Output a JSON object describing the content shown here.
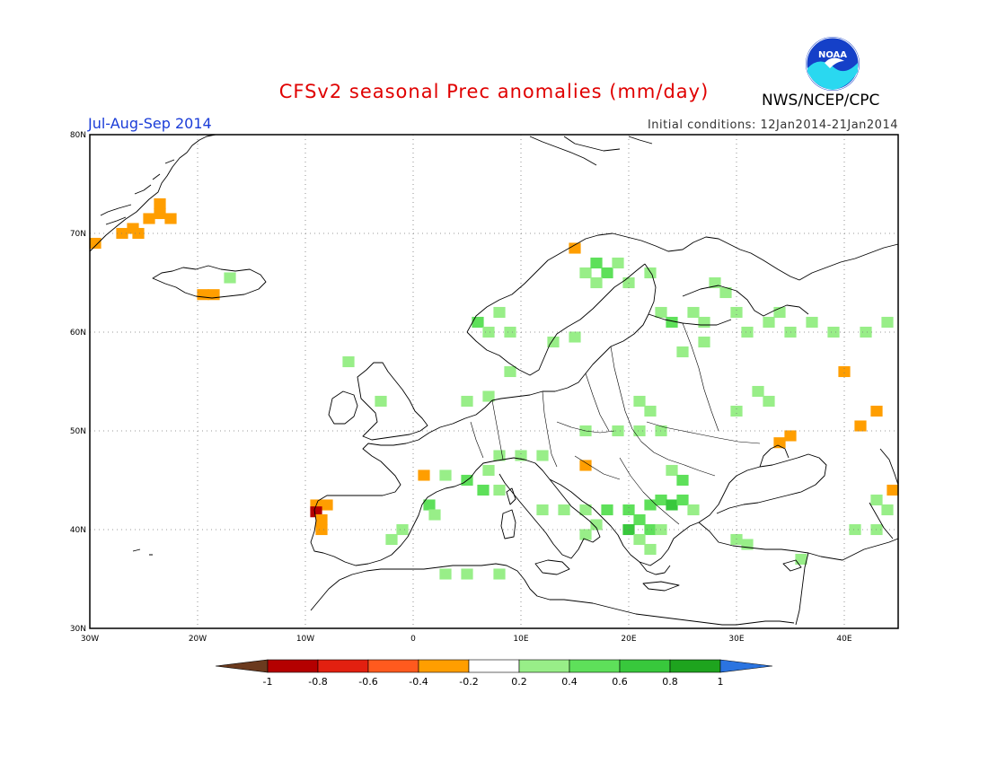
{
  "header": {
    "title": "CFSv2 seasonal Prec anomalies (mm/day)",
    "period": "Jul-Aug-Sep 2014",
    "initial_conditions": "Initial conditions: 12Jan2014-21Jan2014",
    "organization": "NWS/NCEP/CPC",
    "logo_text": "NOAA"
  },
  "map": {
    "region": "Europe",
    "lon_range": [
      -30,
      45
    ],
    "lat_range": [
      30,
      80
    ],
    "lat_labels": [
      "30N",
      "40N",
      "50N",
      "60N",
      "70N",
      "80N"
    ],
    "lon_labels": [
      "30W",
      "20W",
      "10W",
      "0",
      "10E",
      "20E",
      "30E",
      "40E"
    ],
    "grid": "dotted"
  },
  "colorbar": {
    "labels": [
      "-1",
      "-0.8",
      "-0.6",
      "-0.4",
      "-0.2",
      "0.2",
      "0.4",
      "0.6",
      "0.8",
      "1"
    ],
    "colors": [
      "#6b3a1e",
      "#b40000",
      "#e22010",
      "#ff5a1e",
      "#ff9e00",
      "#ffffff",
      "#98ee88",
      "#5ee05a",
      "#38c83c",
      "#1ea41e",
      "#2b74e0"
    ]
  },
  "anomaly_cells": [
    {
      "lon": -29.5,
      "lat": 69,
      "v": -0.3
    },
    {
      "lon": -27,
      "lat": 70,
      "v": -0.3
    },
    {
      "lon": -26,
      "lat": 70.5,
      "v": -0.3
    },
    {
      "lon": -25.5,
      "lat": 70,
      "v": -0.3
    },
    {
      "lon": -24.5,
      "lat": 71.5,
      "v": -0.3
    },
    {
      "lon": -23.5,
      "lat": 72,
      "v": -0.3
    },
    {
      "lon": -22.5,
      "lat": 71.5,
      "v": -0.3
    },
    {
      "lon": -23.5,
      "lat": 73,
      "v": -0.3
    },
    {
      "lon": -19.5,
      "lat": 63.8,
      "v": -0.3
    },
    {
      "lon": -18.5,
      "lat": 63.8,
      "v": -0.3
    },
    {
      "lon": -17,
      "lat": 65.5,
      "v": 0.3
    },
    {
      "lon": 15,
      "lat": 68.5,
      "v": -0.3
    },
    {
      "lon": 16,
      "lat": 66,
      "v": 0.3
    },
    {
      "lon": 17,
      "lat": 67,
      "v": 0.4
    },
    {
      "lon": 18,
      "lat": 66,
      "v": 0.4
    },
    {
      "lon": 19,
      "lat": 67,
      "v": 0.3
    },
    {
      "lon": 17,
      "lat": 65,
      "v": 0.3
    },
    {
      "lon": 20,
      "lat": 65,
      "v": 0.3
    },
    {
      "lon": 22,
      "lat": 66,
      "v": 0.3
    },
    {
      "lon": 8,
      "lat": 62,
      "v": 0.3
    },
    {
      "lon": 6,
      "lat": 61,
      "v": 0.4
    },
    {
      "lon": 7,
      "lat": 60,
      "v": 0.3
    },
    {
      "lon": 9,
      "lat": 60,
      "v": 0.3
    },
    {
      "lon": 13,
      "lat": 59,
      "v": 0.3
    },
    {
      "lon": 15,
      "lat": 59.5,
      "v": 0.3
    },
    {
      "lon": 23,
      "lat": 62,
      "v": 0.3
    },
    {
      "lon": 24,
      "lat": 61,
      "v": 0.4
    },
    {
      "lon": 26,
      "lat": 62,
      "v": 0.3
    },
    {
      "lon": 27,
      "lat": 61,
      "v": 0.3
    },
    {
      "lon": 28,
      "lat": 65,
      "v": 0.3
    },
    {
      "lon": 29,
      "lat": 64,
      "v": 0.3
    },
    {
      "lon": 30,
      "lat": 62,
      "v": 0.3
    },
    {
      "lon": 31,
      "lat": 60,
      "v": 0.3
    },
    {
      "lon": 33,
      "lat": 61,
      "v": 0.3
    },
    {
      "lon": 34,
      "lat": 62,
      "v": 0.3
    },
    {
      "lon": 35,
      "lat": 60,
      "v": 0.3
    },
    {
      "lon": 27,
      "lat": 59,
      "v": 0.3
    },
    {
      "lon": 25,
      "lat": 58,
      "v": 0.3
    },
    {
      "lon": 37,
      "lat": 61,
      "v": 0.3
    },
    {
      "lon": 39,
      "lat": 60,
      "v": 0.3
    },
    {
      "lon": 42,
      "lat": 60,
      "v": 0.3
    },
    {
      "lon": 44,
      "lat": 61,
      "v": 0.3
    },
    {
      "lon": 40,
      "lat": 56,
      "v": -0.3
    },
    {
      "lon": 21,
      "lat": 53,
      "v": 0.3
    },
    {
      "lon": 22,
      "lat": 52,
      "v": 0.3
    },
    {
      "lon": 30,
      "lat": 52,
      "v": 0.3
    },
    {
      "lon": 32,
      "lat": 54,
      "v": 0.3
    },
    {
      "lon": 33,
      "lat": 53,
      "v": 0.3
    },
    {
      "lon": 43,
      "lat": 52,
      "v": -0.3
    },
    {
      "lon": 41.5,
      "lat": 50.5,
      "v": -0.3
    },
    {
      "lon": 35,
      "lat": 49.5,
      "v": -0.3
    },
    {
      "lon": 34,
      "lat": 48.8,
      "v": -0.3
    },
    {
      "lon": 19,
      "lat": 50,
      "v": 0.3
    },
    {
      "lon": 21,
      "lat": 50,
      "v": 0.3
    },
    {
      "lon": 23,
      "lat": 50,
      "v": 0.3
    },
    {
      "lon": 16,
      "lat": 50,
      "v": 0.3
    },
    {
      "lon": 8,
      "lat": 47.5,
      "v": 0.3
    },
    {
      "lon": 10,
      "lat": 47.5,
      "v": 0.3
    },
    {
      "lon": 12,
      "lat": 47.5,
      "v": 0.3
    },
    {
      "lon": 7,
      "lat": 46,
      "v": 0.3
    },
    {
      "lon": 5,
      "lat": 45,
      "v": 0.4
    },
    {
      "lon": 3,
      "lat": 45.5,
      "v": 0.3
    },
    {
      "lon": 1,
      "lat": 45.5,
      "v": -0.3
    },
    {
      "lon": 6.5,
      "lat": 44,
      "v": 0.4
    },
    {
      "lon": 8,
      "lat": 44,
      "v": 0.3
    },
    {
      "lon": 1.5,
      "lat": 42.5,
      "v": 0.4
    },
    {
      "lon": 2,
      "lat": 41.5,
      "v": 0.3
    },
    {
      "lon": -1,
      "lat": 40,
      "v": 0.3
    },
    {
      "lon": -2,
      "lat": 39,
      "v": 0.3
    },
    {
      "lon": -9,
      "lat": 42.5,
      "v": -0.3
    },
    {
      "lon": -8,
      "lat": 42.5,
      "v": -0.3
    },
    {
      "lon": -9,
      "lat": 41.8,
      "v": -0.8
    },
    {
      "lon": -8.5,
      "lat": 41,
      "v": -0.3
    },
    {
      "lon": -8.5,
      "lat": 40,
      "v": -0.3
    },
    {
      "lon": 16,
      "lat": 46.5,
      "v": -0.3
    },
    {
      "lon": 24,
      "lat": 46,
      "v": 0.3
    },
    {
      "lon": 25,
      "lat": 45,
      "v": 0.4
    },
    {
      "lon": 14,
      "lat": 42,
      "v": 0.3
    },
    {
      "lon": 16,
      "lat": 42,
      "v": 0.3
    },
    {
      "lon": 18,
      "lat": 42,
      "v": 0.4
    },
    {
      "lon": 20,
      "lat": 42,
      "v": 0.4
    },
    {
      "lon": 22,
      "lat": 42.5,
      "v": 0.4
    },
    {
      "lon": 23,
      "lat": 43,
      "v": 0.4
    },
    {
      "lon": 24,
      "lat": 42.5,
      "v": 0.6
    },
    {
      "lon": 25,
      "lat": 43,
      "v": 0.4
    },
    {
      "lon": 26,
      "lat": 42,
      "v": 0.3
    },
    {
      "lon": 21,
      "lat": 41,
      "v": 0.4
    },
    {
      "lon": 20,
      "lat": 40,
      "v": 0.6
    },
    {
      "lon": 22,
      "lat": 40,
      "v": 0.4
    },
    {
      "lon": 23,
      "lat": 40,
      "v": 0.3
    },
    {
      "lon": 21,
      "lat": 39,
      "v": 0.3
    },
    {
      "lon": 22,
      "lat": 38,
      "v": 0.3
    },
    {
      "lon": 17,
      "lat": 40.5,
      "v": 0.3
    },
    {
      "lon": 16,
      "lat": 39.5,
      "v": 0.3
    },
    {
      "lon": 12,
      "lat": 42,
      "v": 0.3
    },
    {
      "lon": 30,
      "lat": 39,
      "v": 0.3
    },
    {
      "lon": 31,
      "lat": 38.5,
      "v": 0.3
    },
    {
      "lon": 36,
      "lat": 37,
      "v": 0.3
    },
    {
      "lon": 43,
      "lat": 43,
      "v": 0.3
    },
    {
      "lon": 44.5,
      "lat": 44,
      "v": -0.3
    },
    {
      "lon": 44,
      "lat": 42,
      "v": 0.3
    },
    {
      "lon": 41,
      "lat": 40,
      "v": 0.3
    },
    {
      "lon": 43,
      "lat": 40,
      "v": 0.3
    },
    {
      "lon": 3,
      "lat": 35.5,
      "v": 0.3
    },
    {
      "lon": 5,
      "lat": 35.5,
      "v": 0.3
    },
    {
      "lon": 8,
      "lat": 35.5,
      "v": 0.3
    },
    {
      "lon": 5,
      "lat": 53,
      "v": 0.3
    },
    {
      "lon": 7,
      "lat": 53.5,
      "v": 0.3
    },
    {
      "lon": -6,
      "lat": 57,
      "v": 0.3
    },
    {
      "lon": -3,
      "lat": 53,
      "v": 0.3
    },
    {
      "lon": 9,
      "lat": 56,
      "v": 0.3
    }
  ]
}
